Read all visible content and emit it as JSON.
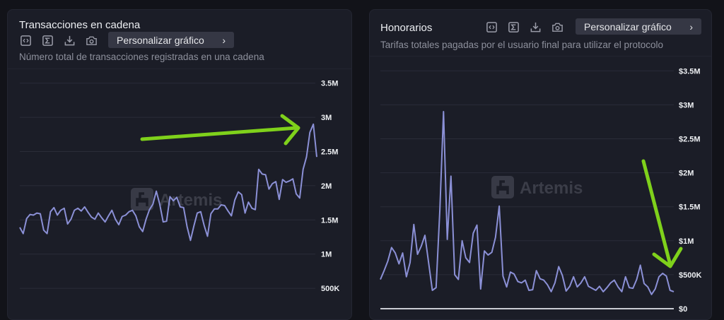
{
  "panels": [
    {
      "title": "Transacciones en cadena",
      "subtitle": "Número total de transacciones registradas en una cadena",
      "customize_label": "Personalizar gráfico",
      "icons": [
        "embed-code-icon",
        "sigma-icon",
        "download-icon",
        "camera-icon"
      ],
      "watermark": "Artemis"
    },
    {
      "title": "Honorarios",
      "subtitle": "Tarifas totales pagadas por el usuario final para utilizar el protocolo",
      "customize_label": "Personalizar gráfico",
      "icons": [
        "embed-code-icon",
        "sigma-icon",
        "download-icon",
        "camera-icon"
      ],
      "watermark": "Artemis"
    }
  ],
  "colors": {
    "line": "#8b90d6",
    "arrow": "#7fd11b",
    "background": "#121319",
    "card": "#1b1d27",
    "grid": "#2a2c38"
  },
  "chart_data": [
    {
      "type": "line",
      "title": "Transacciones en cadena",
      "subtitle": "Número total de transacciones registradas en una cadena",
      "xlabel": "",
      "ylabel": "",
      "yticks": [
        "500K",
        "1M",
        "1.5M",
        "2M",
        "2.5M",
        "3M",
        "3.5M"
      ],
      "ylim": [
        0,
        3500000
      ],
      "grid": true,
      "legend": "none",
      "annotation": "green arrow pointing to latest peak (~2.9M)",
      "series": [
        {
          "name": "Transacciones",
          "values": [
            1390000,
            1300000,
            1520000,
            1580000,
            1570000,
            1600000,
            1590000,
            1350000,
            1300000,
            1620000,
            1680000,
            1570000,
            1640000,
            1670000,
            1440000,
            1510000,
            1640000,
            1670000,
            1630000,
            1690000,
            1610000,
            1540000,
            1510000,
            1600000,
            1530000,
            1470000,
            1560000,
            1640000,
            1510000,
            1430000,
            1550000,
            1570000,
            1620000,
            1640000,
            1560000,
            1400000,
            1330000,
            1510000,
            1650000,
            1730000,
            1920000,
            1730000,
            1470000,
            1480000,
            1840000,
            1780000,
            1830000,
            1690000,
            1680000,
            1400000,
            1200000,
            1410000,
            1600000,
            1620000,
            1420000,
            1260000,
            1590000,
            1660000,
            1660000,
            1720000,
            1710000,
            1630000,
            1560000,
            1790000,
            1910000,
            1870000,
            1600000,
            1760000,
            1670000,
            1650000,
            2240000,
            2170000,
            2160000,
            1950000,
            2030000,
            2060000,
            1800000,
            2090000,
            2050000,
            2070000,
            2100000,
            1880000,
            1820000,
            2240000,
            2420000,
            2780000,
            2900000,
            2420000
          ]
        }
      ]
    },
    {
      "type": "line",
      "title": "Honorarios",
      "subtitle": "Tarifas totales pagadas por el usuario final para utilizar el protocolo",
      "xlabel": "",
      "ylabel": "",
      "yticks": [
        "$0",
        "$500K",
        "$1M",
        "$1.5M",
        "$2M",
        "$2.5M",
        "$3M",
        "$3.5M"
      ],
      "ylim": [
        0,
        3500000
      ],
      "grid": true,
      "legend": "none",
      "annotation": "green arrow pointing down to latest values (~$500K)",
      "series": [
        {
          "name": "Honorarios",
          "values": [
            430000,
            560000,
            700000,
            900000,
            820000,
            660000,
            820000,
            470000,
            680000,
            1240000,
            800000,
            920000,
            1080000,
            670000,
            270000,
            310000,
            1450000,
            2900000,
            1020000,
            1950000,
            500000,
            430000,
            1000000,
            750000,
            680000,
            1110000,
            1230000,
            290000,
            850000,
            790000,
            830000,
            1050000,
            1510000,
            480000,
            320000,
            540000,
            510000,
            400000,
            380000,
            420000,
            270000,
            280000,
            560000,
            440000,
            420000,
            350000,
            250000,
            380000,
            620000,
            490000,
            260000,
            330000,
            470000,
            320000,
            380000,
            470000,
            330000,
            300000,
            270000,
            330000,
            250000,
            310000,
            380000,
            420000,
            320000,
            250000,
            470000,
            310000,
            300000,
            430000,
            640000,
            370000,
            320000,
            210000,
            290000,
            470000,
            520000,
            480000,
            270000,
            250000
          ]
        }
      ]
    }
  ]
}
